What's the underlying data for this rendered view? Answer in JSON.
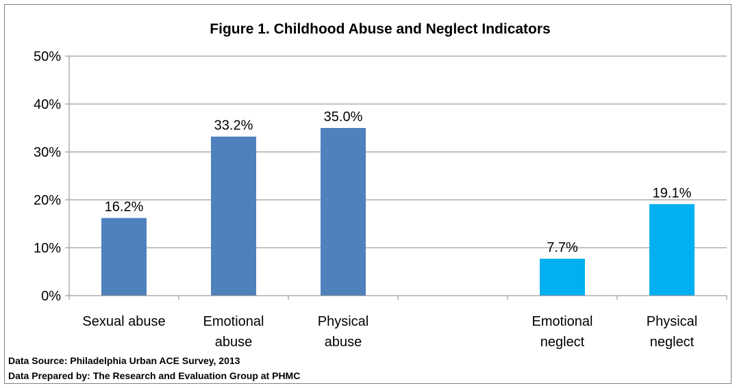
{
  "chart_data": {
    "type": "bar",
    "title": "Figure 1. Childhood Abuse and Neglect Indicators",
    "xlabel": "",
    "ylabel": "",
    "ylim": [
      0,
      50
    ],
    "y_ticks": [
      "0%",
      "10%",
      "20%",
      "30%",
      "40%",
      "50%"
    ],
    "y_tick_values": [
      0,
      10,
      20,
      30,
      40,
      50
    ],
    "grid": true,
    "legend": "none",
    "categories": [
      [
        "Sexual abuse"
      ],
      [
        "Emotional",
        "abuse"
      ],
      [
        "Physical",
        "abuse"
      ],
      [
        ""
      ],
      [
        "Emotional",
        "neglect"
      ],
      [
        "Physical",
        "neglect"
      ]
    ],
    "values": [
      16.2,
      33.2,
      35.0,
      null,
      7.7,
      19.1
    ],
    "data_labels": [
      "16.2%",
      "33.2%",
      "35.0%",
      "",
      "7.7%",
      "19.1%"
    ],
    "colors": [
      "#4f81bd",
      "#4f81bd",
      "#4f81bd",
      null,
      "#00b0f0",
      "#00b0f0"
    ]
  },
  "footer": {
    "source": "Data Source: Philadelphia Urban ACE Survey, 2013",
    "prepared": "Data Prepared by: The Research and Evaluation Group at PHMC"
  }
}
